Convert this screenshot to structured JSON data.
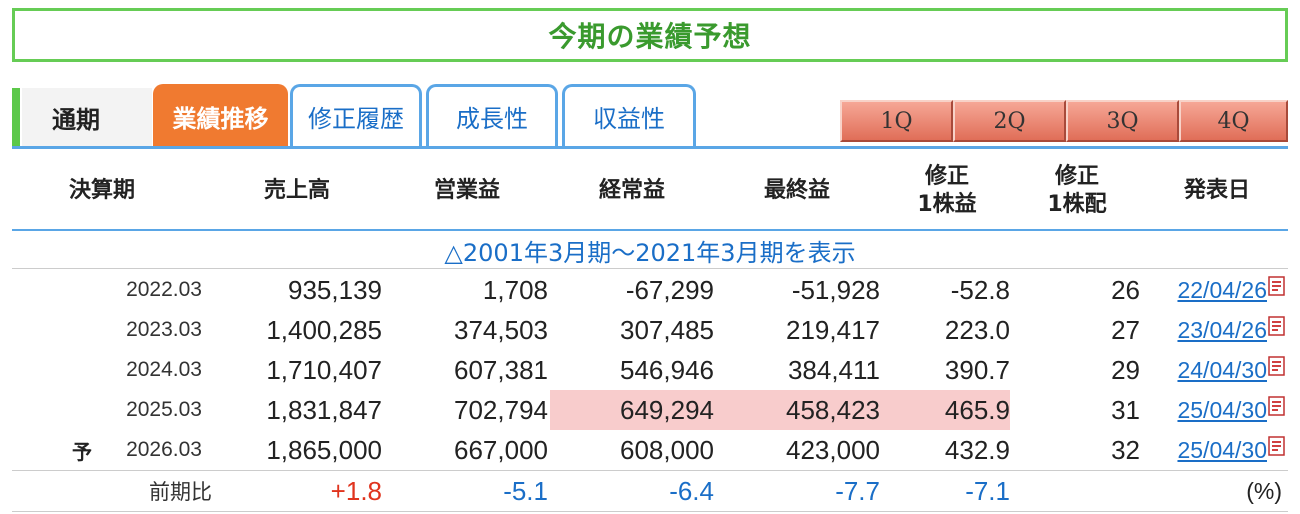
{
  "title": "今期の業績予想",
  "tabs": {
    "annual": "通期",
    "items": [
      {
        "label": "業績推移",
        "active": true
      },
      {
        "label": "修正履歴",
        "active": false
      },
      {
        "label": "成長性",
        "active": false
      },
      {
        "label": "収益性",
        "active": false
      }
    ],
    "quarters": [
      "1Q",
      "2Q",
      "3Q",
      "4Q"
    ]
  },
  "colors": {
    "accent_green": "#5cc84a",
    "tab_blue": "#5aa6e6",
    "active_orange": "#f07a30",
    "highlight": "#f8cccc",
    "negative": "#1a6ec7",
    "positive": "#e0341e"
  },
  "table": {
    "headers": {
      "period": "決算期",
      "sales": "売上高",
      "operating": "営業益",
      "ordinary": "経常益",
      "net": "最終益",
      "eps_line1": "修正",
      "eps_line2": "1株益",
      "dps_line1": "修正",
      "dps_line2": "1株配",
      "date": "発表日"
    },
    "show_past": "△2001年3月期～2021年3月期を表示",
    "rows": [
      {
        "period": "2022.03",
        "forecast": "",
        "sales": "935,139",
        "operating": "1,708",
        "ordinary": "-67,299",
        "net": "-51,928",
        "eps": "-52.8",
        "dps": "26",
        "date": "22/04/26"
      },
      {
        "period": "2023.03",
        "forecast": "",
        "sales": "1,400,285",
        "operating": "374,503",
        "ordinary": "307,485",
        "net": "219,417",
        "eps": "223.0",
        "dps": "27",
        "date": "23/04/26"
      },
      {
        "period": "2024.03",
        "forecast": "",
        "sales": "1,710,407",
        "operating": "607,381",
        "ordinary": "546,946",
        "net": "384,411",
        "eps": "390.7",
        "dps": "29",
        "date": "24/04/30"
      },
      {
        "period": "2025.03",
        "forecast": "",
        "sales": "1,831,847",
        "operating": "702,794",
        "ordinary": "649,294",
        "net": "458,423",
        "eps": "465.9",
        "dps": "31",
        "date": "25/04/30"
      },
      {
        "period": "2026.03",
        "forecast": "予",
        "sales": "1,865,000",
        "operating": "667,000",
        "ordinary": "608,000",
        "net": "423,000",
        "eps": "432.9",
        "dps": "32",
        "date": "25/04/30"
      }
    ],
    "change_row": {
      "label": "前期比",
      "sales": "+1.8",
      "operating": "-5.1",
      "ordinary": "-6.4",
      "net": "-7.7",
      "eps": "-7.1",
      "unit": "(%)"
    }
  }
}
